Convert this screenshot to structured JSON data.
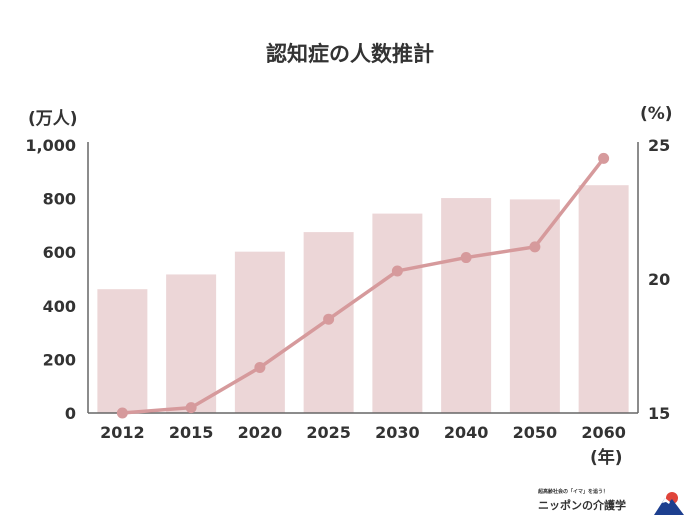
{
  "chart_data": {
    "type": "bar",
    "title": "認知症の人数推計",
    "categories": [
      "2012",
      "2015",
      "2020",
      "2025",
      "2030",
      "2040",
      "2050",
      "2060"
    ],
    "xlabel": "(年)",
    "ylabel": "(万人)",
    "ylim": [
      0,
      1000
    ],
    "yticks": [
      "0",
      "200",
      "400",
      "600",
      "800",
      "1,000"
    ],
    "y2label": "(%)",
    "y2lim": [
      15,
      25
    ],
    "y2ticks": [
      "15",
      "20",
      "25"
    ],
    "grid": false,
    "series": [
      {
        "type": "bar",
        "axis": "left",
        "color": "#ecd6d7",
        "values": [
          462,
          517,
          602,
          675,
          744,
          802,
          797,
          850
        ]
      },
      {
        "type": "line",
        "axis": "right",
        "color": "#d69a9c",
        "values": [
          15.0,
          15.2,
          16.7,
          18.5,
          20.3,
          20.8,
          21.2,
          24.5
        ]
      }
    ]
  },
  "logo": {
    "tagline": "超高齢社会の「イマ」を追う！",
    "name": "ニッポンの介護学"
  },
  "colors": {
    "bar": "#ecd6d7",
    "line": "#d69a9c",
    "axis": "#666666",
    "text": "#333333"
  }
}
